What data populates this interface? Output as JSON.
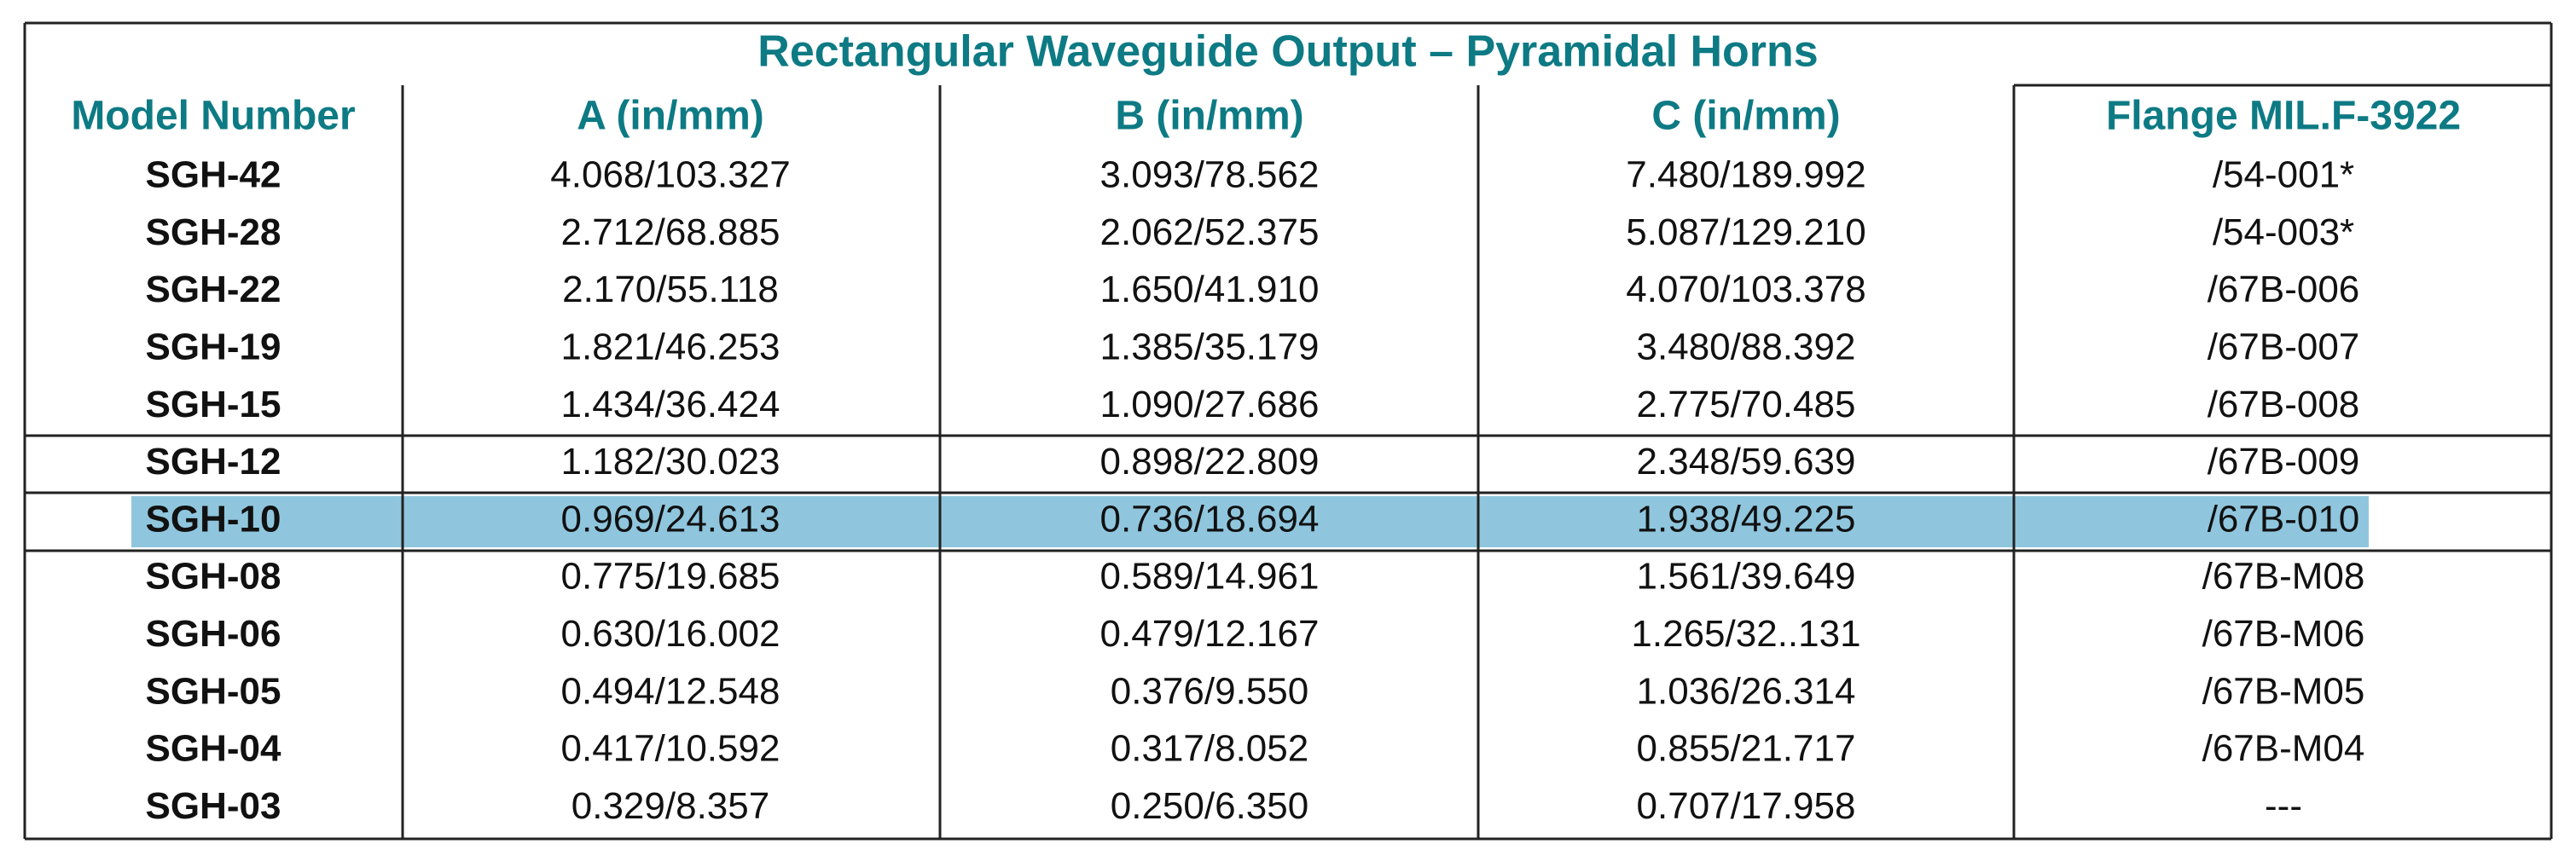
{
  "table": {
    "title": "Rectangular Waveguide Output – Pyramidal Horns",
    "header": [
      "Model Number",
      "A (in/mm)",
      "B (in/mm)",
      "C (in/mm)",
      "Flange MIL.F-3922"
    ],
    "rows": [
      [
        "SGH-42",
        "4.068/103.327",
        "3.093/78.562",
        "7.480/189.992",
        "/54-001*"
      ],
      [
        "SGH-28",
        "2.712/68.885",
        "2.062/52.375",
        "5.087/129.210",
        "/54-003*"
      ],
      [
        "SGH-22",
        "2.170/55.118",
        "1.650/41.910",
        "4.070/103.378",
        "/67B-006"
      ],
      [
        "SGH-19",
        "1.821/46.253",
        "1.385/35.179",
        "3.480/88.392",
        "/67B-007"
      ],
      [
        "SGH-15",
        "1.434/36.424",
        "1.090/27.686",
        "2.775/70.485",
        "/67B-008"
      ],
      [
        "SGH-12",
        "1.182/30.023",
        "0.898/22.809",
        "2.348/59.639",
        "/67B-009"
      ],
      [
        "SGH-10",
        "0.969/24.613",
        "0.736/18.694",
        "1.938/49.225",
        "/67B-010"
      ],
      [
        "SGH-08",
        "0.775/19.685",
        "0.589/14.961",
        "1.561/39.649",
        "/67B-M08"
      ],
      [
        "SGH-06",
        "0.630/16.002",
        "0.479/12.167",
        "1.265/32..131",
        "/67B-M06"
      ],
      [
        "SGH-05",
        "0.494/12.548",
        "0.376/9.550",
        "1.036/26.314",
        "/67B-M05"
      ],
      [
        "SGH-04",
        "0.417/10.592",
        "0.317/8.052",
        "0.855/21.717",
        "/67B-M04"
      ],
      [
        "SGH-03",
        "0.329/8.357",
        "0.250/6.350",
        "0.707/17.958",
        "---"
      ]
    ]
  }
}
